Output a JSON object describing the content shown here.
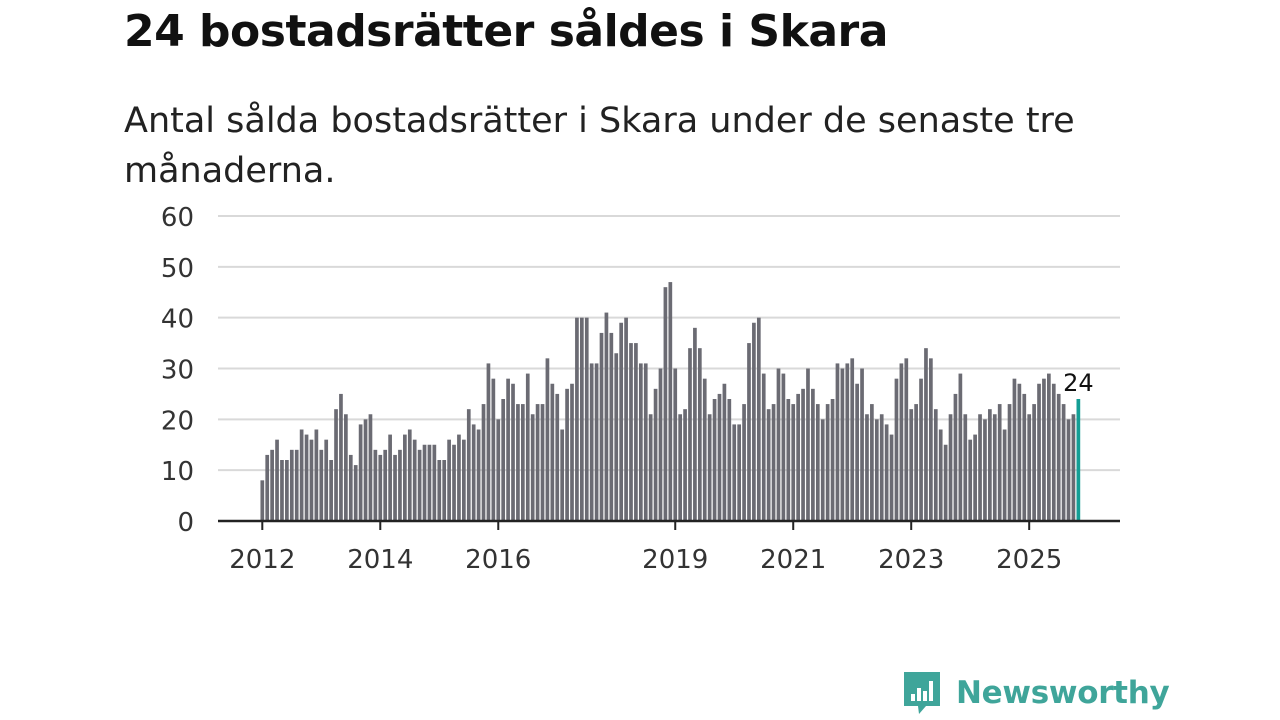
{
  "header": {
    "title": "24 bostadsrätter såldes i Skara",
    "subtitle": "Antal sålda bostadsrätter i Skara under de senaste tre månaderna."
  },
  "brand": {
    "name": "Newsworthy",
    "color": "#3fa59a",
    "icon": "newsworthy-logo-icon"
  },
  "chart_data": {
    "type": "bar",
    "title": "24 bostadsrätter såldes i Skara",
    "subtitle": "Antal sålda bostadsrätter i Skara under de senaste tre månaderna.",
    "xlabel": "",
    "ylabel": "",
    "ylim": [
      0,
      60
    ],
    "yticks": [
      "0",
      "10",
      "20",
      "30",
      "40",
      "50",
      "60"
    ],
    "xticks": [
      "2012",
      "2014",
      "2016",
      "2019",
      "2021",
      "2023",
      "2025"
    ],
    "xtick_values": [
      2012,
      2014,
      2016,
      2019,
      2021,
      2023,
      2025
    ],
    "grid": true,
    "bar_color": "#6b6b73",
    "highlight_color": "#149e95",
    "start_year": 2012,
    "start_month": 1,
    "highlight_label": "24",
    "values": [
      8,
      13,
      14,
      16,
      12,
      12,
      14,
      14,
      18,
      17,
      16,
      18,
      14,
      16,
      12,
      22,
      25,
      21,
      13,
      11,
      19,
      20,
      21,
      14,
      13,
      14,
      17,
      13,
      14,
      17,
      18,
      16,
      14,
      15,
      15,
      15,
      12,
      12,
      16,
      15,
      17,
      16,
      22,
      19,
      18,
      23,
      31,
      28,
      20,
      24,
      28,
      27,
      23,
      23,
      29,
      21,
      23,
      23,
      32,
      27,
      25,
      18,
      26,
      27,
      40,
      40,
      40,
      31,
      31,
      37,
      41,
      37,
      33,
      39,
      40,
      35,
      35,
      31,
      31,
      21,
      26,
      30,
      46,
      47,
      30,
      21,
      22,
      34,
      38,
      34,
      28,
      21,
      24,
      25,
      27,
      24,
      19,
      19,
      23,
      35,
      39,
      40,
      29,
      22,
      23,
      30,
      29,
      24,
      23,
      25,
      26,
      30,
      26,
      23,
      20,
      23,
      24,
      31,
      30,
      31,
      32,
      27,
      30,
      21,
      23,
      20,
      21,
      19,
      17,
      28,
      31,
      32,
      22,
      23,
      28,
      34,
      32,
      22,
      18,
      15,
      21,
      25,
      29,
      21,
      16,
      17,
      21,
      20,
      22,
      21,
      23,
      18,
      23,
      28,
      27,
      25,
      21,
      23,
      27,
      28,
      29,
      27,
      25,
      23,
      20,
      21,
      24
    ]
  }
}
